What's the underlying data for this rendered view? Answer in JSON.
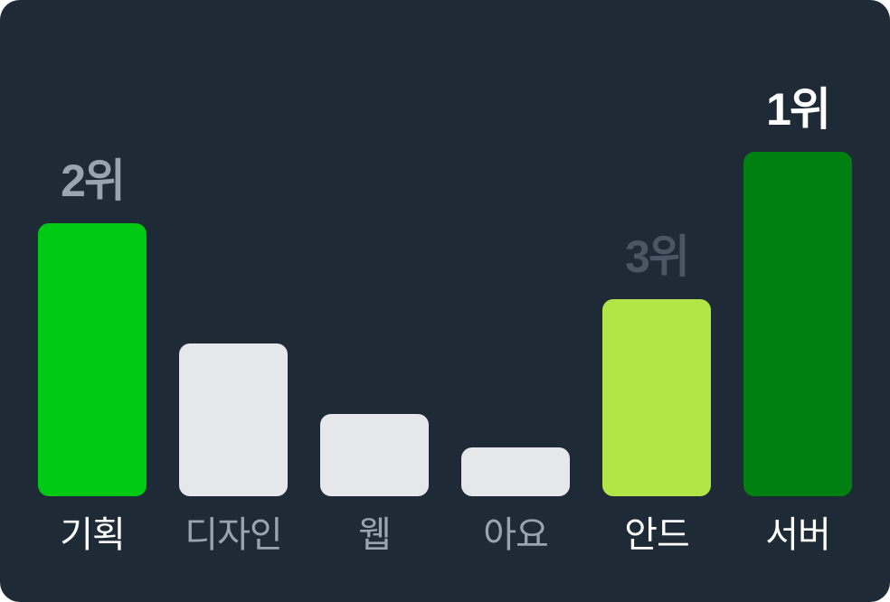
{
  "chart_data": {
    "type": "bar",
    "categories": [
      "기획",
      "디자인",
      "웹",
      "아요",
      "안드",
      "서버"
    ],
    "values": [
      100,
      56,
      30,
      18,
      72,
      126
    ],
    "ranks": [
      "2위",
      "",
      "",
      "",
      "3위",
      "1위"
    ],
    "bar_colors": [
      "#00c914",
      "#e5e7eb",
      "#e5e7eb",
      "#e5e7eb",
      "#b2e646",
      "#008010"
    ],
    "label_colors": [
      "#ffffff",
      "#9aa3af",
      "#9aa3af",
      "#9aa3af",
      "#ffffff",
      "#ffffff"
    ],
    "rank_colors": [
      "#9aa3af",
      "",
      "",
      "",
      "#4b5563",
      "#ffffff"
    ],
    "title": "",
    "xlabel": "",
    "ylabel": "",
    "ylim": [
      0,
      126
    ],
    "grid": false,
    "legend": "none"
  },
  "colors": {
    "background": "#1f2a37"
  }
}
